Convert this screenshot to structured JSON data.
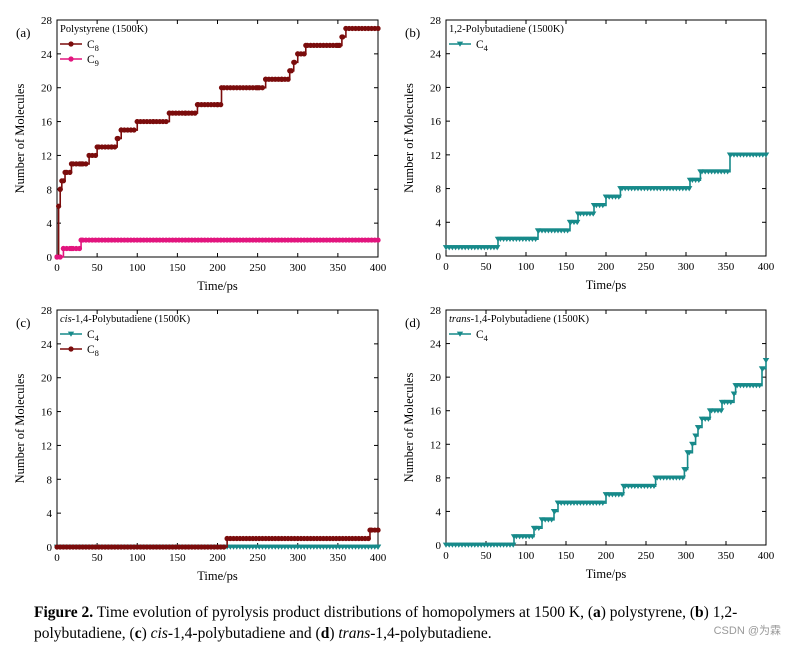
{
  "caption": {
    "label": "Figure 2.",
    "text_a": "Time evolution of pyrolysis product distributions of homopolymers at 1500 K, (",
    "a": "a",
    "t1": ") polystyrene,",
    "b": "b",
    "t2": ") 1,2-polybutadiene, (",
    "c": "c",
    "t3": ") ",
    "cis": "cis",
    "t4": "-1,4-polybutadiene and (",
    "d": "d",
    "t5": ") ",
    "trans": "trans",
    "t6": "-1,4-polybutadiene.",
    "open": "("
  },
  "watermark": "CSDN @为霖",
  "chart_data": [
    {
      "panel": "(a)",
      "type": "line",
      "title": "Polystyrene (1500K)",
      "xlabel": "Time/ps",
      "ylabel": "Number of Molecules",
      "xlim": [
        0,
        400
      ],
      "ylim": [
        0,
        28
      ],
      "xticks": [
        0,
        50,
        100,
        150,
        200,
        250,
        300,
        350,
        400
      ],
      "yticks": [
        0,
        4,
        8,
        12,
        16,
        20,
        24,
        28
      ],
      "legend_position": "top-left",
      "series": [
        {
          "name": "C",
          "sub": "8",
          "color": "#7b0c0c",
          "marker": "circle",
          "x": [
            0,
            2,
            4,
            6,
            10,
            18,
            30,
            40,
            50,
            68,
            75,
            80,
            100,
            120,
            140,
            160,
            175,
            200,
            205,
            250,
            260,
            280,
            290,
            295,
            300,
            310,
            350,
            355,
            360,
            400
          ],
          "y": [
            0,
            6,
            8,
            9,
            10,
            11,
            11,
            12,
            13,
            13,
            14,
            15,
            16,
            16,
            17,
            17,
            18,
            18,
            20,
            20,
            21,
            21,
            22,
            23,
            24,
            25,
            25,
            26,
            27,
            27
          ]
        },
        {
          "name": "C",
          "sub": "9",
          "color": "#e2157e",
          "marker": "circle",
          "x": [
            0,
            8,
            18,
            30,
            400
          ],
          "y": [
            0,
            1,
            1,
            2,
            2
          ]
        }
      ]
    },
    {
      "panel": "(b)",
      "type": "line",
      "title": "1,2-Polybutadiene (1500K)",
      "xlabel": "Time/ps",
      "ylabel": "Number of Molecules",
      "xlim": [
        0,
        400
      ],
      "ylim": [
        0,
        28
      ],
      "xticks": [
        0,
        50,
        100,
        150,
        200,
        250,
        300,
        350,
        400
      ],
      "yticks": [
        0,
        4,
        8,
        12,
        16,
        20,
        24,
        28
      ],
      "legend_position": "top-left",
      "series": [
        {
          "name": "C",
          "sub": "4",
          "color": "#178a8a",
          "marker": "triangle-down",
          "x": [
            0,
            65,
            115,
            155,
            165,
            185,
            200,
            218,
            305,
            318,
            355,
            400
          ],
          "y": [
            1,
            2,
            3,
            4,
            5,
            6,
            7,
            8,
            9,
            10,
            12,
            12
          ]
        }
      ]
    },
    {
      "panel": "(c)",
      "type": "line",
      "title": "-1,4-Polybutadiene (1500K)",
      "title_prefix": "cis",
      "xlabel": "Time/ps",
      "ylabel": "Number of Molecules",
      "xlim": [
        0,
        400
      ],
      "ylim": [
        0,
        28
      ],
      "xticks": [
        0,
        50,
        100,
        150,
        200,
        250,
        300,
        350,
        400
      ],
      "yticks": [
        0,
        4,
        8,
        12,
        16,
        20,
        24,
        28
      ],
      "legend_position": "top-left",
      "series": [
        {
          "name": "C",
          "sub": "4",
          "color": "#178a8a",
          "marker": "triangle-down",
          "x": [
            0,
            400
          ],
          "y": [
            0,
            0
          ]
        },
        {
          "name": "C",
          "sub": "8",
          "color": "#7b0c0c",
          "marker": "circle",
          "x": [
            0,
            212,
            390,
            400
          ],
          "y": [
            0,
            1,
            2,
            2
          ]
        }
      ]
    },
    {
      "panel": "(d)",
      "type": "line",
      "title": "-1,4-Polybutadiene (1500K)",
      "title_prefix": "trans",
      "xlabel": "Time/ps",
      "ylabel": "Number of Molecules",
      "xlim": [
        0,
        400
      ],
      "ylim": [
        0,
        28
      ],
      "xticks": [
        0,
        50,
        100,
        150,
        200,
        250,
        300,
        350,
        400
      ],
      "yticks": [
        0,
        4,
        8,
        12,
        16,
        20,
        24,
        28
      ],
      "legend_position": "top-left",
      "series": [
        {
          "name": "C",
          "sub": "4",
          "color": "#178a8a",
          "marker": "triangle-down",
          "x": [
            0,
            85,
            110,
            120,
            135,
            140,
            200,
            222,
            262,
            298,
            302,
            308,
            312,
            315,
            320,
            330,
            345,
            360,
            362,
            395,
            400
          ],
          "y": [
            0,
            1,
            2,
            3,
            4,
            5,
            6,
            7,
            8,
            9,
            11,
            12,
            13,
            14,
            15,
            16,
            17,
            18,
            19,
            21,
            22
          ]
        }
      ]
    }
  ]
}
